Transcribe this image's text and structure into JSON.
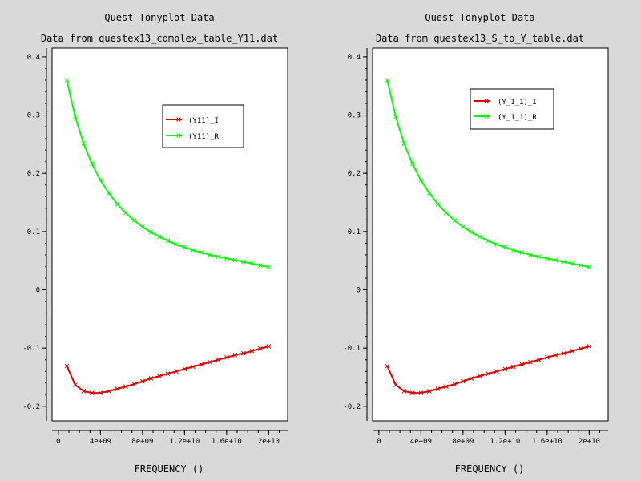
{
  "colors": {
    "background": "#d9d9d9",
    "plot_area": "#ffffff",
    "axis": "#000000",
    "series_I": "#dd0000",
    "series_R": "#00ff00"
  },
  "chart_data": [
    {
      "type": "line",
      "title": "Quest Tonyplot Data",
      "subtitle": "Data from questex13_complex_table_Y11.dat",
      "xlabel": "FREQUENCY ()",
      "ylabel": "",
      "xlim": [
        -600000000.0,
        21800000000.0
      ],
      "ylim": [
        -0.225,
        0.415
      ],
      "xticks": [
        {
          "value": 4000000000.0,
          "label": "4e+09"
        },
        {
          "value": 8000000000.0,
          "label": "8e+09"
        },
        {
          "value": 12000000000.0,
          "label": "1.2e+10"
        },
        {
          "value": 16000000000.0,
          "label": "1.6e+10"
        },
        {
          "value": 20000000000.0,
          "label": "2e+10"
        }
      ],
      "yticks": [
        {
          "value": 0.4,
          "label": "0.4"
        },
        {
          "value": 0.3,
          "label": "0.3"
        },
        {
          "value": 0.2,
          "label": "0.2"
        },
        {
          "value": 0.1,
          "label": "0.1"
        },
        {
          "value": 0.0,
          "label": "0"
        },
        {
          "value": -0.1,
          "label": "-0.1"
        },
        {
          "value": -0.2,
          "label": "-0.2"
        }
      ],
      "x": [
        800000000.0,
        1600000000.0,
        2400000000.0,
        3200000000.0,
        4000000000.0,
        4800000000.0,
        5600000000.0,
        6400000000.0,
        7200000000.0,
        8000000000.0,
        8800000000.0,
        9600000000.0,
        10400000000.0,
        11200000000.0,
        12000000000.0,
        12800000000.0,
        13600000000.0,
        14400000000.0,
        15200000000.0,
        16000000000.0,
        16800000000.0,
        17600000000.0,
        18400000000.0,
        19200000000.0,
        20000000000.0
      ],
      "legend_position": "top-right",
      "series": [
        {
          "name": "(Y11)_I",
          "marker": "x",
          "values": [
            -0.131,
            -0.163,
            -0.174,
            -0.177,
            -0.177,
            -0.174,
            -0.17,
            -0.166,
            -0.162,
            -0.157,
            -0.152,
            -0.148,
            -0.144,
            -0.14,
            -0.136,
            -0.132,
            -0.128,
            -0.124,
            -0.12,
            -0.116,
            -0.112,
            -0.109,
            -0.105,
            -0.101,
            -0.097
          ]
        },
        {
          "name": "(Y11)_R",
          "marker": "x",
          "values": [
            0.36,
            0.297,
            0.251,
            0.216,
            0.188,
            0.166,
            0.147,
            0.132,
            0.119,
            0.108,
            0.099,
            0.091,
            0.084,
            0.078,
            0.073,
            0.068,
            0.064,
            0.06,
            0.057,
            0.054,
            0.051,
            0.048,
            0.045,
            0.042,
            0.039
          ]
        }
      ]
    },
    {
      "type": "line",
      "title": "Quest Tonyplot Data",
      "subtitle": "Data from questex13_S_to_Y_table.dat",
      "xlabel": "FREQUENCY ()",
      "ylabel": "",
      "xlim": [
        -600000000.0,
        21800000000.0
      ],
      "ylim": [
        -0.225,
        0.415
      ],
      "xticks": [
        {
          "value": 4000000000.0,
          "label": "4e+09"
        },
        {
          "value": 8000000000.0,
          "label": "8e+09"
        },
        {
          "value": 12000000000.0,
          "label": "1.2e+10"
        },
        {
          "value": 16000000000.0,
          "label": "1.6e+10"
        },
        {
          "value": 20000000000.0,
          "label": "2e+10"
        }
      ],
      "yticks": [
        {
          "value": 0.4,
          "label": "0.4"
        },
        {
          "value": 0.3,
          "label": "0.3"
        },
        {
          "value": 0.2,
          "label": "0.2"
        },
        {
          "value": 0.1,
          "label": "0.1"
        },
        {
          "value": 0.0,
          "label": "0"
        },
        {
          "value": -0.1,
          "label": "-0.1"
        },
        {
          "value": -0.2,
          "label": "-0.2"
        }
      ],
      "x": [
        800000000.0,
        1600000000.0,
        2400000000.0,
        3200000000.0,
        4000000000.0,
        4800000000.0,
        5600000000.0,
        6400000000.0,
        7200000000.0,
        8000000000.0,
        8800000000.0,
        9600000000.0,
        10400000000.0,
        11200000000.0,
        12000000000.0,
        12800000000.0,
        13600000000.0,
        14400000000.0,
        15200000000.0,
        16000000000.0,
        16800000000.0,
        17600000000.0,
        18400000000.0,
        19200000000.0,
        20000000000.0
      ],
      "legend_position": "top-right",
      "series": [
        {
          "name": "(Y_1_1)_I",
          "marker": "x",
          "values": [
            -0.131,
            -0.163,
            -0.174,
            -0.177,
            -0.177,
            -0.174,
            -0.17,
            -0.166,
            -0.162,
            -0.157,
            -0.152,
            -0.148,
            -0.144,
            -0.14,
            -0.136,
            -0.132,
            -0.128,
            -0.124,
            -0.12,
            -0.116,
            -0.112,
            -0.109,
            -0.105,
            -0.101,
            -0.097
          ]
        },
        {
          "name": "(Y_1_1)_R",
          "marker": "x",
          "values": [
            0.36,
            0.297,
            0.251,
            0.216,
            0.188,
            0.166,
            0.147,
            0.132,
            0.119,
            0.108,
            0.099,
            0.091,
            0.084,
            0.078,
            0.073,
            0.068,
            0.064,
            0.06,
            0.057,
            0.054,
            0.051,
            0.048,
            0.045,
            0.042,
            0.039
          ]
        }
      ]
    }
  ]
}
